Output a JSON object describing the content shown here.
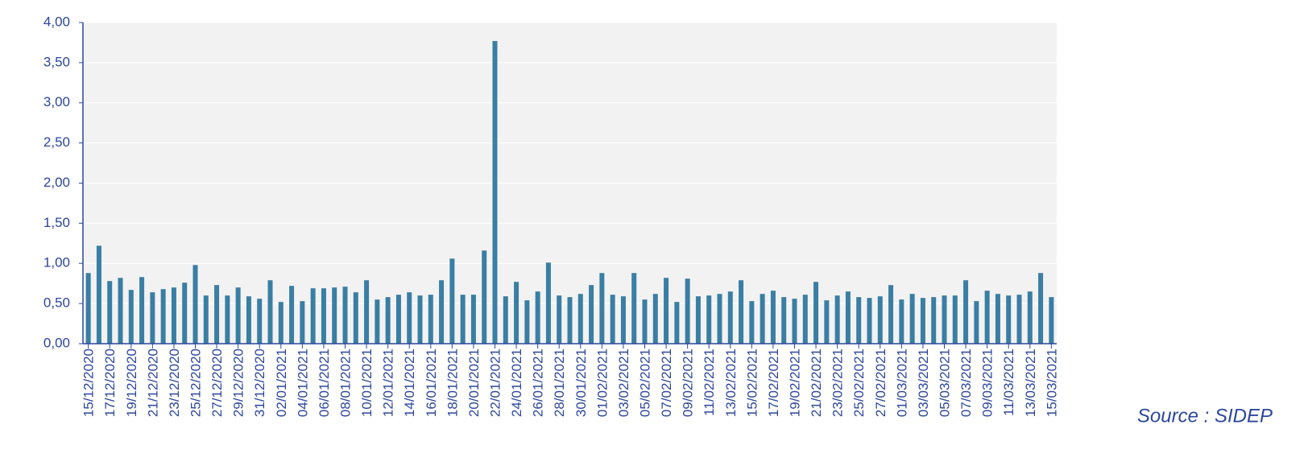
{
  "chart_data": {
    "type": "bar",
    "source": "Source : SIDEP",
    "categories": [
      "15/12/2020",
      null,
      "17/12/2020",
      null,
      "19/12/2020",
      null,
      "21/12/2020",
      null,
      "23/12/2020",
      null,
      "25/12/2020",
      null,
      "27/12/2020",
      null,
      "29/12/2020",
      null,
      "31/12/2020",
      null,
      "02/01/2021",
      null,
      "04/01/2021",
      null,
      "06/01/2021",
      null,
      "08/01/2021",
      null,
      "10/01/2021",
      null,
      "12/01/2021",
      null,
      "14/01/2021",
      null,
      "16/01/2021",
      null,
      "18/01/2021",
      null,
      "20/01/2021",
      null,
      "22/01/2021",
      null,
      "24/01/2021",
      null,
      "26/01/2021",
      null,
      "28/01/2021",
      null,
      "30/01/2021",
      null,
      "01/02/2021",
      null,
      "03/02/2021",
      null,
      "05/02/2021",
      null,
      "07/02/2021",
      null,
      "09/02/2021",
      null,
      "11/02/2021",
      null,
      "13/02/2021",
      null,
      "15/02/2021",
      null,
      "17/02/2021",
      null,
      "19/02/2021",
      null,
      "21/02/2021",
      null,
      "23/02/2021",
      null,
      "25/02/2021",
      null,
      "27/02/2021",
      null,
      "01/03/2021",
      null,
      "03/03/2021",
      null,
      "05/03/2021",
      null,
      "07/03/2021",
      null,
      "09/03/2021",
      null,
      "11/03/2021",
      null,
      "13/03/2021",
      null,
      "15/03/2021"
    ],
    "values": [
      0.88,
      1.22,
      0.78,
      0.82,
      0.67,
      0.83,
      0.64,
      0.68,
      0.7,
      0.76,
      0.98,
      0.6,
      0.73,
      0.6,
      0.7,
      0.59,
      0.56,
      0.79,
      0.52,
      0.72,
      0.53,
      0.69,
      0.69,
      0.7,
      0.71,
      0.64,
      0.79,
      0.55,
      0.58,
      0.61,
      0.64,
      0.6,
      0.61,
      0.79,
      1.06,
      0.61,
      0.61,
      1.16,
      3.77,
      0.59,
      0.77,
      0.54,
      0.65,
      1.01,
      0.6,
      0.58,
      0.62,
      0.73,
      0.88,
      0.61,
      0.59,
      0.88,
      0.55,
      0.62,
      0.82,
      0.52,
      0.81,
      0.59,
      0.6,
      0.62,
      0.65,
      0.79,
      0.53,
      0.62,
      0.66,
      0.58,
      0.56,
      0.61,
      0.77,
      0.54,
      0.6,
      0.65,
      0.58,
      0.57,
      0.59,
      0.73,
      0.55,
      0.62,
      0.57,
      0.58,
      0.6,
      0.6,
      0.79,
      0.53,
      0.66,
      0.62,
      0.6,
      0.61,
      0.65,
      0.88,
      0.58
    ],
    "color": "#3a7ea3",
    "ylim": [
      0,
      4
    ],
    "yticks": [
      {
        "value": 0,
        "label": "0,00"
      },
      {
        "value": 0.5,
        "label": "0,50"
      },
      {
        "value": 1,
        "label": "1,00"
      },
      {
        "value": 1.5,
        "label": "1,50"
      },
      {
        "value": 2,
        "label": "2,00"
      },
      {
        "value": 2.5,
        "label": "2,50"
      },
      {
        "value": 3,
        "label": "3,00"
      },
      {
        "value": 3.5,
        "label": "3,50"
      },
      {
        "value": 4,
        "label": "4,00"
      }
    ],
    "grid": true
  }
}
